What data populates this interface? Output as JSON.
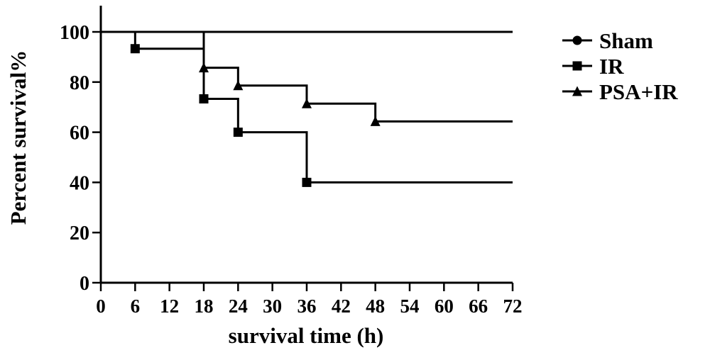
{
  "chart_data": {
    "type": "line",
    "step": true,
    "xlabel": "survival time (h)",
    "ylabel": "Percent survival%",
    "xlim": [
      0,
      72
    ],
    "ylim": [
      0,
      110
    ],
    "xticks": [
      0,
      6,
      12,
      18,
      24,
      30,
      36,
      42,
      48,
      54,
      60,
      66,
      72
    ],
    "yticks": [
      0,
      20,
      40,
      60,
      80,
      100
    ],
    "grid": false,
    "legend": "right",
    "series": [
      {
        "name": "Sham",
        "marker": "circle",
        "x": [
          0,
          72
        ],
        "y": [
          100,
          100
        ],
        "event_points": []
      },
      {
        "name": "IR",
        "marker": "square",
        "x": [
          0,
          6,
          18,
          24,
          36,
          72
        ],
        "y": [
          100,
          93.3,
          73.3,
          60,
          40,
          40
        ],
        "event_points": [
          [
            6,
            93.3
          ],
          [
            18,
            73.3
          ],
          [
            24,
            60
          ],
          [
            36,
            40
          ]
        ]
      },
      {
        "name": "PSA+IR",
        "marker": "triangle",
        "x": [
          0,
          18,
          24,
          36,
          48,
          72
        ],
        "y": [
          100,
          85.7,
          78.6,
          71.4,
          64.3,
          64.3
        ],
        "event_points": [
          [
            18,
            85.7
          ],
          [
            24,
            78.6
          ],
          [
            36,
            71.4
          ],
          [
            48,
            64.3
          ]
        ]
      }
    ]
  }
}
